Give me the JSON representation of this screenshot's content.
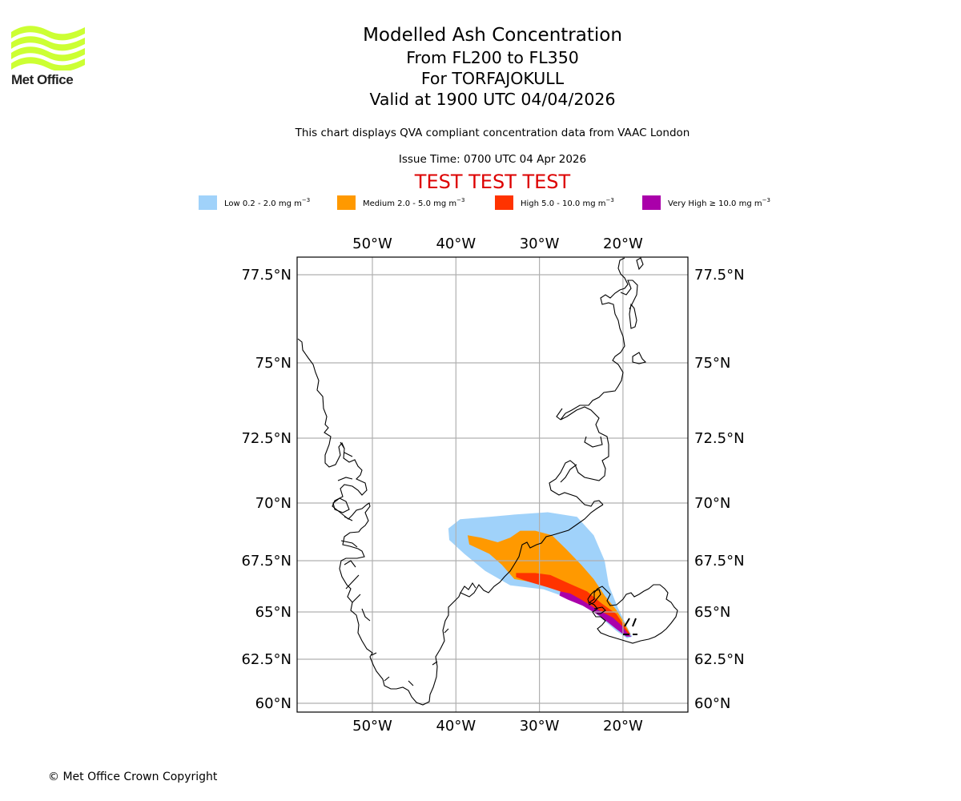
{
  "branding": {
    "logo_text": "Met Office",
    "logo_color": "#ccff33",
    "icon": "met-office-waves-logo"
  },
  "header": {
    "title": "Modelled Ash Concentration",
    "levels": "From FL200 to FL350",
    "volcano": "For TORFAJOKULL",
    "valid": "Valid at 1900 UTC 04/04/2026",
    "description": "This chart displays QVA compliant concentration data from VAAC London",
    "issue_time": "Issue Time: 0700 UTC 04 Apr 2026",
    "test_banner": "TEST TEST TEST",
    "test_color": "#dd0000"
  },
  "legend": [
    {
      "label": "Low 0.2 - 2.0 mg m",
      "exp": "−3",
      "color": "#a0d2fa"
    },
    {
      "label": "Medium 2.0 - 5.0 mg m",
      "exp": "−3",
      "color": "#ff9900"
    },
    {
      "label": "High 5.0 - 10.0 mg m",
      "exp": "−3",
      "color": "#ff3300"
    },
    {
      "label": "Very High  ≥  10.0 mg m",
      "exp": "−3",
      "color": "#aa00aa"
    }
  ],
  "chart_data": {
    "type": "map",
    "title": "Modelled Ash Concentration",
    "region": "Greenland / Iceland / Denmark Strait",
    "extent": {
      "lon": [
        -59,
        -12
      ],
      "lat": [
        59.5,
        78.5
      ]
    },
    "grid": true,
    "lon_ticks": [
      "50°W",
      "40°W",
      "30°W",
      "20°W"
    ],
    "lon_tick_values": [
      -50,
      -40,
      -30,
      -20
    ],
    "lat_ticks": [
      "77.5°N",
      "75°N",
      "72.5°N",
      "70°N",
      "67.5°N",
      "65°N",
      "62.5°N",
      "60°N"
    ],
    "lat_tick_values": [
      77.5,
      75,
      72.5,
      70,
      67.5,
      65,
      62.5,
      60
    ],
    "source_volcano": {
      "name": "TORFAJOKULL",
      "lon": -19.1,
      "lat": 63.9
    },
    "plume_levels": [
      {
        "level": "Low",
        "color": "#a0d2fa",
        "polygon": [
          [
            -40.9,
            68.9
          ],
          [
            -39.5,
            69.3
          ],
          [
            -36,
            69.4
          ],
          [
            -33,
            69.5
          ],
          [
            -29,
            69.6
          ],
          [
            -25.5,
            69.4
          ],
          [
            -23.5,
            68.6
          ],
          [
            -22.2,
            67.5
          ],
          [
            -21.7,
            66.3
          ],
          [
            -20.6,
            65.2
          ],
          [
            -19.6,
            64.3
          ],
          [
            -18.9,
            63.7
          ],
          [
            -19.5,
            63.6
          ],
          [
            -20.8,
            64.0
          ],
          [
            -23.2,
            64.9
          ],
          [
            -26,
            65.6
          ],
          [
            -29.5,
            66.1
          ],
          [
            -33.5,
            66.3
          ],
          [
            -36.5,
            67.0
          ],
          [
            -39.0,
            67.8
          ],
          [
            -40.8,
            68.4
          ]
        ]
      },
      {
        "level": "Medium",
        "color": "#ff9900",
        "polygon": [
          [
            -38.6,
            68.6
          ],
          [
            -37,
            68.5
          ],
          [
            -35,
            68.3
          ],
          [
            -33.5,
            68.5
          ],
          [
            -32.3,
            68.8
          ],
          [
            -30.5,
            68.8
          ],
          [
            -28.5,
            68.6
          ],
          [
            -26.8,
            68.0
          ],
          [
            -25.0,
            67.3
          ],
          [
            -23.5,
            66.6
          ],
          [
            -22.2,
            65.8
          ],
          [
            -20.8,
            65.1
          ],
          [
            -19.8,
            64.4
          ],
          [
            -19.1,
            63.8
          ],
          [
            -19.7,
            63.8
          ],
          [
            -21.0,
            64.3
          ],
          [
            -23.5,
            65.2
          ],
          [
            -26.5,
            65.9
          ],
          [
            -30,
            66.4
          ],
          [
            -33,
            66.6
          ],
          [
            -34.5,
            67.3
          ],
          [
            -36,
            67.8
          ],
          [
            -38.4,
            68.2
          ]
        ]
      },
      {
        "level": "High",
        "color": "#ff3300",
        "polygon": [
          [
            -32.8,
            66.9
          ],
          [
            -30.5,
            66.9
          ],
          [
            -28.7,
            66.8
          ],
          [
            -26.5,
            66.4
          ],
          [
            -24.3,
            66.0
          ],
          [
            -22.5,
            65.4
          ],
          [
            -20.8,
            64.9
          ],
          [
            -19.6,
            64.1
          ],
          [
            -19.1,
            63.8
          ],
          [
            -19.8,
            63.9
          ],
          [
            -21.3,
            64.4
          ],
          [
            -23.5,
            65.2
          ],
          [
            -26,
            65.8
          ],
          [
            -29,
            66.2
          ],
          [
            -31.5,
            66.5
          ],
          [
            -32.8,
            66.7
          ]
        ]
      },
      {
        "level": "Very High",
        "color": "#aa00aa",
        "polygon": [
          [
            -27.5,
            66.0
          ],
          [
            -26.3,
            65.9
          ],
          [
            -25.0,
            65.6
          ],
          [
            -23.4,
            65.2
          ],
          [
            -21.2,
            64.7
          ],
          [
            -20.2,
            64.3
          ],
          [
            -19.5,
            63.9
          ],
          [
            -19.0,
            63.7
          ],
          [
            -19.6,
            63.7
          ],
          [
            -20.8,
            64.1
          ],
          [
            -22.8,
            64.8
          ],
          [
            -24.8,
            65.3
          ],
          [
            -26.6,
            65.6
          ],
          [
            -27.6,
            65.8
          ]
        ]
      }
    ]
  },
  "footer": {
    "copyright": "© Met Office Crown Copyright"
  }
}
